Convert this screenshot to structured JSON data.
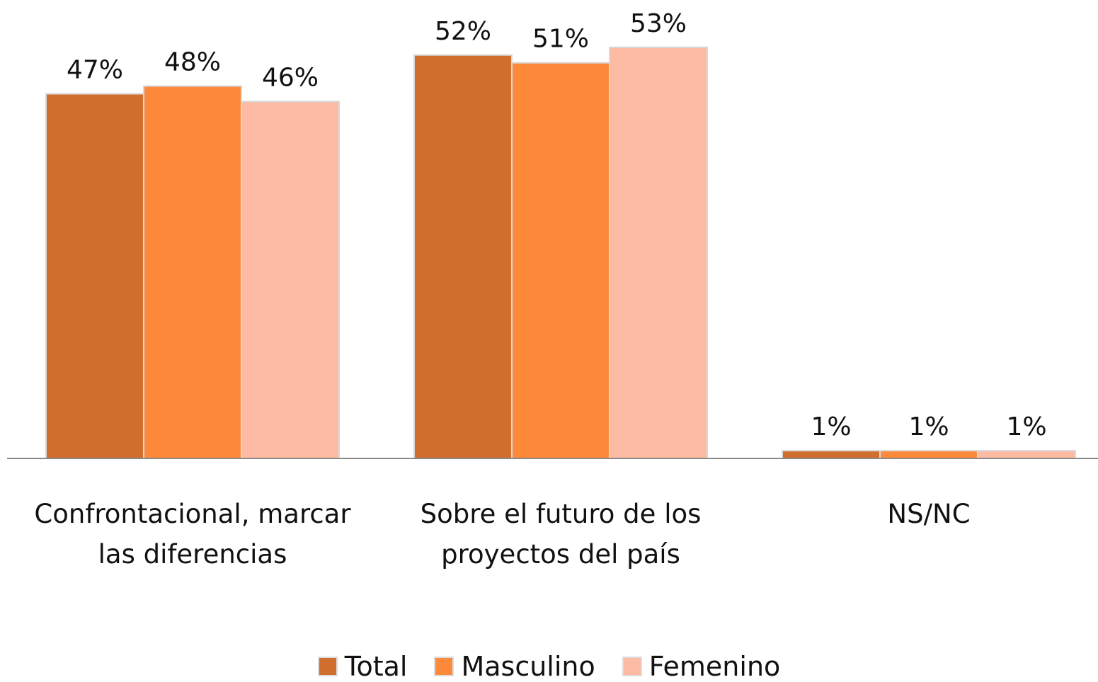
{
  "chart_data": {
    "type": "bar",
    "categories": [
      "Confrontacional, marcar las diferencias",
      "Sobre el futuro de los proyectos del país",
      "NS/NC"
    ],
    "series": [
      {
        "name": "Total",
        "color": "#d06e2e",
        "values": [
          47,
          52,
          1
        ],
        "value_labels": [
          "47%",
          "52%",
          "1%"
        ]
      },
      {
        "name": "Masculino",
        "color": "#fd8a3b",
        "values": [
          48,
          51,
          1
        ],
        "value_labels": [
          "48%",
          "51%",
          "1%"
        ]
      },
      {
        "name": "Femenino",
        "color": "#fdbba3",
        "values": [
          46,
          53,
          1
        ],
        "value_labels": [
          "46%",
          "53%",
          "1%"
        ]
      }
    ],
    "ylim": [
      0,
      59
    ]
  }
}
